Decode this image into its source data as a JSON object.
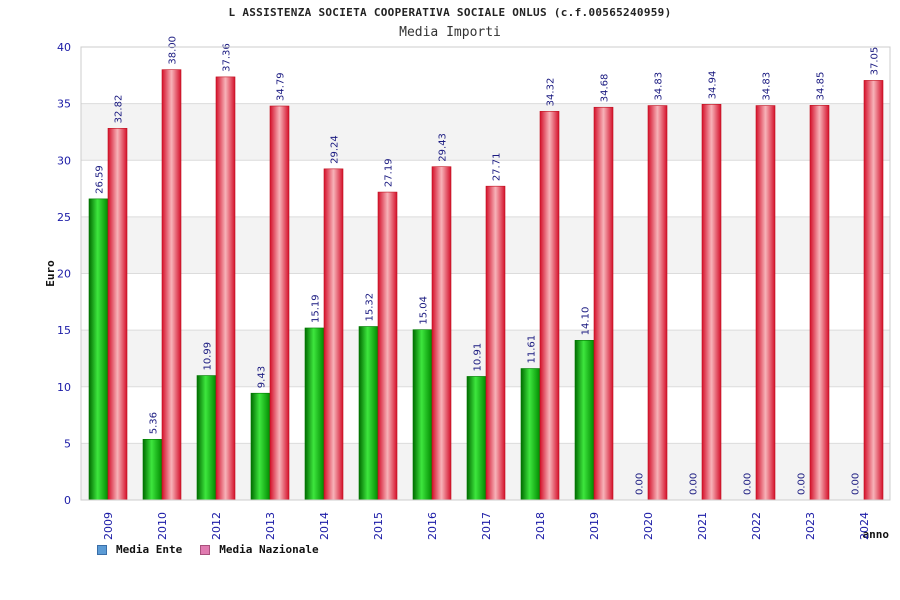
{
  "chart_data": {
    "type": "bar",
    "title": "L ASSISTENZA SOCIETA COOPERATIVA SOCIALE ONLUS (c.f.00565240959)",
    "subtitle": "Media Importi",
    "xlabel": "anno",
    "ylabel": "Euro",
    "ylim": [
      0,
      40
    ],
    "yticks": [
      "0",
      "5",
      "10",
      "15",
      "20",
      "25",
      "30",
      "35",
      "40"
    ],
    "categories": [
      "2009",
      "2010",
      "2012",
      "2013",
      "2014",
      "2015",
      "2016",
      "2017",
      "2018",
      "2019",
      "2020",
      "2021",
      "2022",
      "2023",
      "2024"
    ],
    "series": [
      {
        "name": "Media Ente",
        "color": "#00b400",
        "legend_color": "#5b9bd5",
        "values": [
          26.59,
          5.36,
          10.99,
          9.43,
          15.19,
          15.32,
          15.04,
          10.91,
          11.61,
          14.1,
          0.0,
          0.0,
          0.0,
          0.0,
          0.0
        ],
        "labels": [
          "26.59",
          "5.36",
          "10.99",
          "9.43",
          "15.19",
          "15.32",
          "15.04",
          "10.91",
          "11.61",
          "14.10",
          "0.00",
          "0.00",
          "0.00",
          "0.00",
          "0.00"
        ]
      },
      {
        "name": "Media Nazionale",
        "color": "#e8192c",
        "legend_color": "#e07ab0",
        "values": [
          32.82,
          38.0,
          37.36,
          34.79,
          29.24,
          27.19,
          29.43,
          27.71,
          34.32,
          34.68,
          34.83,
          34.94,
          34.83,
          34.85,
          37.05
        ],
        "labels": [
          "32.82",
          "38.00",
          "37.36",
          "34.79",
          "29.24",
          "27.19",
          "29.43",
          "27.71",
          "34.32",
          "34.68",
          "34.83",
          "34.94",
          "34.83",
          "34.85",
          "37.05"
        ]
      }
    ],
    "grid": true,
    "legend_position": "bottom-left"
  }
}
